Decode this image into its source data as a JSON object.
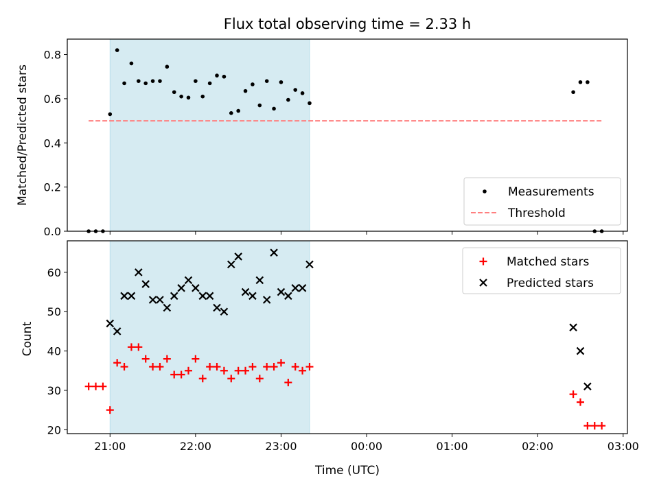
{
  "chart_data": [
    {
      "type": "scatter",
      "title": "Flux total observing time = 2.33 h",
      "xlabel": "",
      "ylabel": "Matched/Predicted stars",
      "xlim": [
        "20:30",
        "03:03"
      ],
      "ylim": [
        0,
        0.87
      ],
      "yticks": [
        "0.0",
        "0.2",
        "0.4",
        "0.6",
        "0.8"
      ],
      "highlight_span": {
        "from": "21:00",
        "to": "23:20",
        "color": "#add8e6"
      },
      "legend_position": "bottom-right",
      "grid": false,
      "series": [
        {
          "name": "Measurements",
          "color": "#000000",
          "marker": "dot",
          "points": [
            [
              "20:45",
              0.0
            ],
            [
              "20:50",
              0.0
            ],
            [
              "20:55",
              0.0
            ],
            [
              "21:00",
              0.53
            ],
            [
              "21:05",
              0.82
            ],
            [
              "21:10",
              0.67
            ],
            [
              "21:15",
              0.76
            ],
            [
              "21:20",
              0.68
            ],
            [
              "21:25",
              0.67
            ],
            [
              "21:30",
              0.68
            ],
            [
              "21:35",
              0.68
            ],
            [
              "21:40",
              0.745
            ],
            [
              "21:45",
              0.63
            ],
            [
              "21:50",
              0.61
            ],
            [
              "21:55",
              0.605
            ],
            [
              "22:00",
              0.68
            ],
            [
              "22:05",
              0.61
            ],
            [
              "22:10",
              0.67
            ],
            [
              "22:15",
              0.705
            ],
            [
              "22:20",
              0.7
            ],
            [
              "22:25",
              0.535
            ],
            [
              "22:30",
              0.545
            ],
            [
              "22:35",
              0.635
            ],
            [
              "22:40",
              0.665
            ],
            [
              "22:45",
              0.57
            ],
            [
              "22:50",
              0.68
            ],
            [
              "22:55",
              0.555
            ],
            [
              "23:00",
              0.675
            ],
            [
              "23:05",
              0.595
            ],
            [
              "23:10",
              0.64
            ],
            [
              "23:15",
              0.625
            ],
            [
              "23:20",
              0.58
            ],
            [
              "02:25",
              0.63
            ],
            [
              "02:30",
              0.675
            ],
            [
              "02:35",
              0.675
            ],
            [
              "02:40",
              0.0
            ],
            [
              "02:45",
              0.0
            ]
          ]
        },
        {
          "name": "Threshold",
          "color": "#ff7f7f",
          "style": "dashed",
          "points": [
            [
              "20:45",
              0.5
            ],
            [
              "02:45",
              0.5
            ]
          ]
        }
      ]
    },
    {
      "type": "scatter",
      "title": "",
      "xlabel": "Time (UTC)",
      "ylabel": "Count",
      "xlim": [
        "20:30",
        "03:03"
      ],
      "ylim": [
        19,
        68
      ],
      "yticks": [
        "20",
        "30",
        "40",
        "50",
        "60"
      ],
      "xticks": [
        "21:00",
        "22:00",
        "23:00",
        "00:00",
        "01:00",
        "02:00",
        "03:00"
      ],
      "highlight_span": {
        "from": "21:00",
        "to": "23:20",
        "color": "#add8e6"
      },
      "legend_position": "top-right",
      "grid": false,
      "series": [
        {
          "name": "Matched stars",
          "color": "#ff0000",
          "marker": "plus",
          "points": [
            [
              "20:45",
              31
            ],
            [
              "20:50",
              31
            ],
            [
              "20:55",
              31
            ],
            [
              "21:00",
              25
            ],
            [
              "21:05",
              37
            ],
            [
              "21:10",
              36
            ],
            [
              "21:15",
              41
            ],
            [
              "21:20",
              41
            ],
            [
              "21:25",
              38
            ],
            [
              "21:30",
              36
            ],
            [
              "21:35",
              36
            ],
            [
              "21:40",
              38
            ],
            [
              "21:45",
              34
            ],
            [
              "21:50",
              34
            ],
            [
              "21:55",
              35
            ],
            [
              "22:00",
              38
            ],
            [
              "22:05",
              33
            ],
            [
              "22:10",
              36
            ],
            [
              "22:15",
              36
            ],
            [
              "22:20",
              35
            ],
            [
              "22:25",
              33
            ],
            [
              "22:30",
              35
            ],
            [
              "22:35",
              35
            ],
            [
              "22:40",
              36
            ],
            [
              "22:45",
              33
            ],
            [
              "22:50",
              36
            ],
            [
              "22:55",
              36
            ],
            [
              "23:00",
              37
            ],
            [
              "23:05",
              32
            ],
            [
              "23:10",
              36
            ],
            [
              "23:15",
              35
            ],
            [
              "23:20",
              36
            ],
            [
              "02:25",
              29
            ],
            [
              "02:30",
              27
            ],
            [
              "02:35",
              21
            ],
            [
              "02:40",
              21
            ],
            [
              "02:45",
              21
            ]
          ]
        },
        {
          "name": "Predicted stars",
          "color": "#000000",
          "marker": "x",
          "points": [
            [
              "21:00",
              47
            ],
            [
              "21:05",
              45
            ],
            [
              "21:10",
              54
            ],
            [
              "21:15",
              54
            ],
            [
              "21:20",
              60
            ],
            [
              "21:25",
              57
            ],
            [
              "21:30",
              53
            ],
            [
              "21:35",
              53
            ],
            [
              "21:40",
              51
            ],
            [
              "21:45",
              54
            ],
            [
              "21:50",
              56
            ],
            [
              "21:55",
              58
            ],
            [
              "22:00",
              56
            ],
            [
              "22:05",
              54
            ],
            [
              "22:10",
              54
            ],
            [
              "22:15",
              51
            ],
            [
              "22:20",
              50
            ],
            [
              "22:25",
              62
            ],
            [
              "22:30",
              64
            ],
            [
              "22:35",
              55
            ],
            [
              "22:40",
              54
            ],
            [
              "22:45",
              58
            ],
            [
              "22:50",
              53
            ],
            [
              "22:55",
              65
            ],
            [
              "23:00",
              55
            ],
            [
              "23:05",
              54
            ],
            [
              "23:10",
              56
            ],
            [
              "23:15",
              56
            ],
            [
              "23:20",
              62
            ],
            [
              "02:25",
              46
            ],
            [
              "02:30",
              40
            ],
            [
              "02:35",
              31
            ]
          ]
        }
      ]
    }
  ]
}
